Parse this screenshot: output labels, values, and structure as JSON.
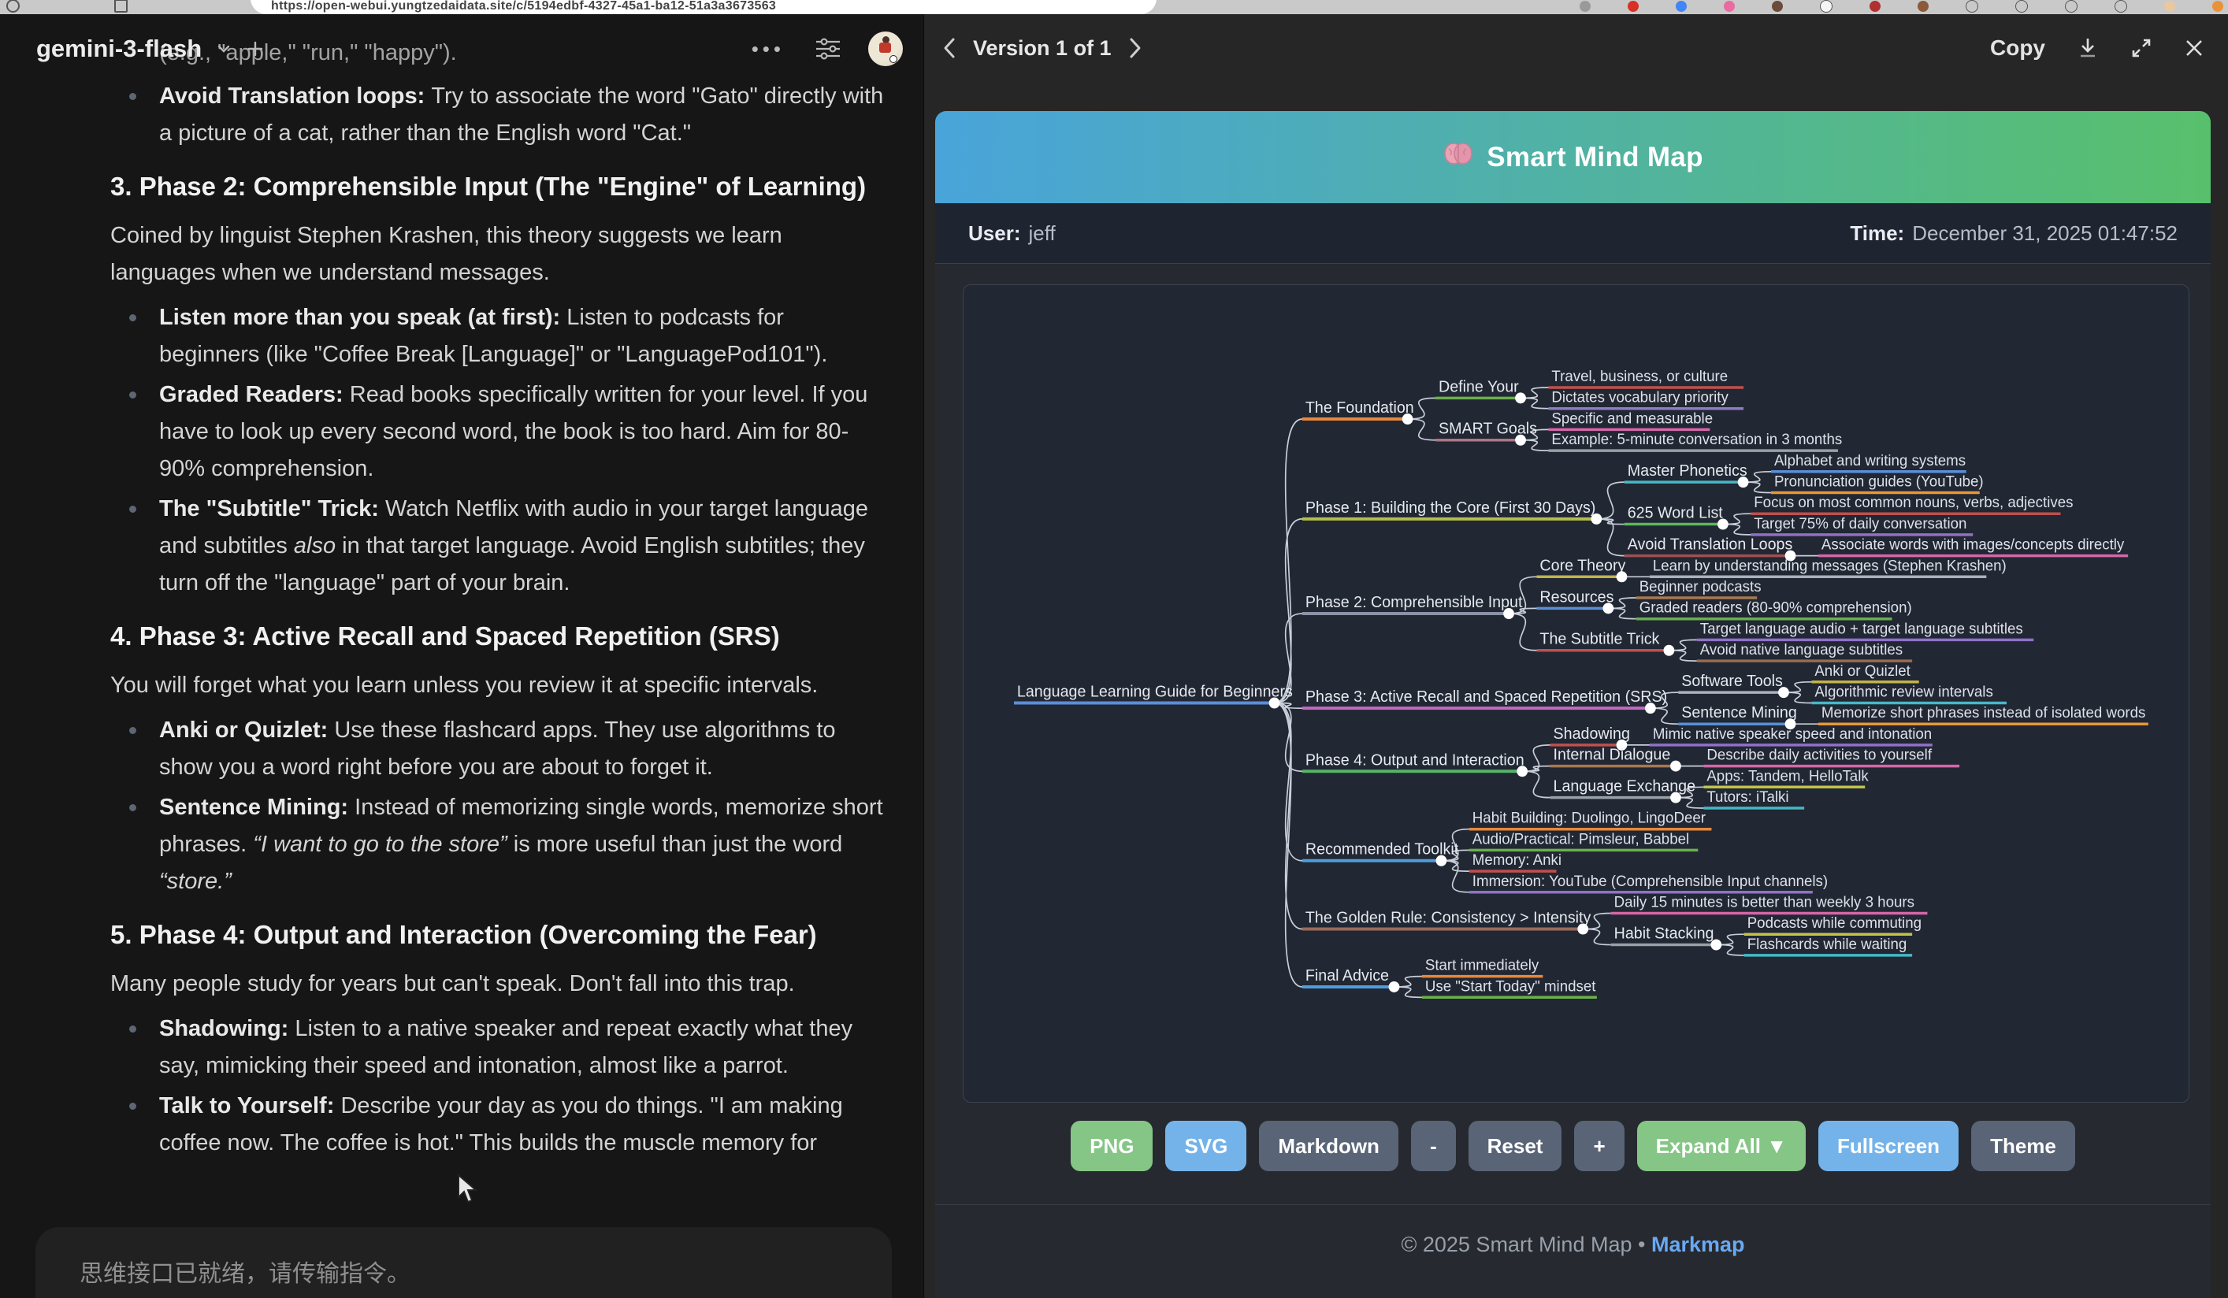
{
  "browser": {
    "url": "https://open-webui.yungtzedaidata.site/c/5194edbf-4327-45a1-ba12-51a3a3673563",
    "extension_icons": [
      {
        "name": "extension-icon-gray",
        "color": "#9a9a9a"
      },
      {
        "name": "extension-icon-red",
        "color": "#d93025"
      },
      {
        "name": "extension-icon-blue",
        "color": "#4285f4"
      },
      {
        "name": "extension-icon-pink",
        "color": "#e86ca0"
      },
      {
        "name": "extension-icon-brown",
        "color": "#6b4b3a"
      },
      {
        "name": "extension-icon-white",
        "color": "#f5f5f5"
      },
      {
        "name": "extension-icon-darkred",
        "color": "#b03030"
      },
      {
        "name": "extension-icon-tan",
        "color": "#8a5a3a"
      },
      {
        "name": "extension-icon-outline-1",
        "color": "#3c3c3c"
      },
      {
        "name": "extension-icon-outline-2",
        "color": "#3c3c3c"
      },
      {
        "name": "extension-icon-outline-3",
        "color": "#3c3c3c"
      },
      {
        "name": "extension-icon-outline-4",
        "color": "#3c3c3c"
      },
      {
        "name": "profile-avatar",
        "color": "#e8c8a0"
      },
      {
        "name": "extension-icon-orange",
        "color": "#e8923a"
      }
    ]
  },
  "chat": {
    "model": "gemini-3-flash",
    "input_placeholder": "思维接口已就绪，请传输指令。",
    "blocks": [
      {
        "type": "frag",
        "runs": [
          {
            "t": "(e.g., \"apple,\" \"run,\" \"happy\")."
          }
        ]
      },
      {
        "type": "bullet",
        "runs": [
          {
            "b": true,
            "t": "Avoid Translation loops: "
          },
          {
            "t": "Try to associate the word \"Gato\" directly with a picture of a cat, rather than the English word \"Cat.\""
          }
        ]
      },
      {
        "type": "h3",
        "runs": [
          {
            "t": "3. Phase 2: Comprehensible Input (The \"Engine\" of Learning)"
          }
        ]
      },
      {
        "type": "p",
        "runs": [
          {
            "t": "Coined by linguist Stephen Krashen, this theory suggests we learn languages when we understand messages."
          }
        ]
      },
      {
        "type": "bullet",
        "runs": [
          {
            "b": true,
            "t": "Listen more than you speak (at first): "
          },
          {
            "t": "Listen to podcasts for beginners (like \"Coffee Break [Language]\" or \"LanguagePod101\")."
          }
        ]
      },
      {
        "type": "bullet",
        "runs": [
          {
            "b": true,
            "t": "Graded Readers: "
          },
          {
            "t": "Read books specifically written for your level. If you have to look up every second word, the book is too hard. Aim for 80-90% comprehension."
          }
        ]
      },
      {
        "type": "bullet",
        "runs": [
          {
            "b": true,
            "t": "The \"Subtitle\" Trick: "
          },
          {
            "t": "Watch Netflix with audio in your target language and subtitles "
          },
          {
            "i": true,
            "t": "also"
          },
          {
            "t": " in that target language. Avoid English subtitles; they turn off the \"language\" part of your brain."
          }
        ]
      },
      {
        "type": "h3",
        "runs": [
          {
            "t": "4. Phase 3: Active Recall and Spaced Repetition (SRS)"
          }
        ]
      },
      {
        "type": "p",
        "runs": [
          {
            "t": "You will forget what you learn unless you review it at specific intervals."
          }
        ]
      },
      {
        "type": "bullet",
        "runs": [
          {
            "b": true,
            "t": "Anki or Quizlet: "
          },
          {
            "t": "Use these flashcard apps. They use algorithms to show you a word right before you are about to forget it."
          }
        ]
      },
      {
        "type": "bullet",
        "runs": [
          {
            "b": true,
            "t": "Sentence Mining: "
          },
          {
            "t": "Instead of memorizing single words, memorize short phrases. "
          },
          {
            "i": true,
            "t": "“I want to go to the store”"
          },
          {
            "t": " is more useful than just the word "
          },
          {
            "i": true,
            "t": "“store.”"
          }
        ]
      },
      {
        "type": "h3",
        "runs": [
          {
            "t": "5. Phase 4: Output and Interaction (Overcoming the Fear)"
          }
        ]
      },
      {
        "type": "p",
        "runs": [
          {
            "t": "Many people study for years but can't speak. Don't fall into this trap."
          }
        ]
      },
      {
        "type": "bullet",
        "runs": [
          {
            "b": true,
            "t": "Shadowing: "
          },
          {
            "t": "Listen to a native speaker and repeat exactly what they say, mimicking their speed and intonation, almost like a parrot."
          }
        ]
      },
      {
        "type": "bullet",
        "runs": [
          {
            "b": true,
            "t": "Talk to Yourself: "
          },
          {
            "t": "Describe your day as you do things. \"I am making coffee now. The coffee is hot.\" This builds the muscle memory for"
          }
        ]
      }
    ]
  },
  "artifact": {
    "version_label": "Version 1 of 1",
    "copy_label": "Copy"
  },
  "mindmap": {
    "title": "Smart Mind Map",
    "user_label": "User:",
    "user_value": "jeff",
    "time_label": "Time:",
    "time_value": "December 31, 2025 01:47:52",
    "footer_text": "© 2025 Smart Mind Map •",
    "footer_link": "Markmap",
    "toolbar": [
      {
        "label": "PNG",
        "style": "green"
      },
      {
        "label": "SVG",
        "style": "blue"
      },
      {
        "label": "Markdown",
        "style": "slate"
      },
      {
        "label": "-",
        "style": "slate"
      },
      {
        "label": "Reset",
        "style": "slate"
      },
      {
        "label": "+",
        "style": "slate"
      },
      {
        "label": "Expand All ▼",
        "style": "green"
      },
      {
        "label": "Fullscreen",
        "style": "blue"
      },
      {
        "label": "Theme",
        "style": "slate"
      }
    ],
    "tree": {
      "label": "Language Learning Guide for Beginners",
      "color": "#5a8fd8",
      "children": [
        {
          "label": "The Foundation",
          "color": "#e8883a",
          "children": [
            {
              "label": "Define Your",
              "color": "#6ab04c",
              "children": [
                {
                  "label": "Travel, business, or culture",
                  "color": "#c0504d"
                },
                {
                  "label": "Dictates vocabulary priority",
                  "color": "#8e7cc3"
                }
              ]
            },
            {
              "label": "SMART Goals",
              "color": "#b07585",
              "children": [
                {
                  "label": "Specific and measurable",
                  "color": "#d567a8"
                },
                {
                  "label": "Example: 5-minute conversation in 3 months",
                  "color": "#9aa0a6"
                }
              ]
            }
          ]
        },
        {
          "label": "Phase 1: Building the Core (First 30 Days)",
          "color": "#b5bd4e",
          "children": [
            {
              "label": "Master Phonetics",
              "color": "#45b8c8",
              "children": [
                {
                  "label": "Alphabet and writing systems",
                  "color": "#5a8fd8"
                },
                {
                  "label": "Pronunciation guides (YouTube)",
                  "color": "#e8973a"
                }
              ]
            },
            {
              "label": "625 Word List",
              "color": "#5cb85c",
              "children": [
                {
                  "label": "Focus on most common nouns, verbs, adjectives",
                  "color": "#c0504d"
                },
                {
                  "label": "Target 75% of daily conversation",
                  "color": "#9270c8"
                }
              ]
            },
            {
              "label": "Avoid Translation Loops",
              "color": "#a05050",
              "children": [
                {
                  "label": "Associate words with images/concepts directly",
                  "color": "#d567a8"
                }
              ]
            }
          ]
        },
        {
          "label": "Phase 2: Comprehensible Input",
          "color": "#8a93a6",
          "children": [
            {
              "label": "Core Theory",
              "color": "#c2b44a",
              "children": [
                {
                  "label": "Learn by understanding messages (Stephen Krashen)",
                  "color": "#aab2bd"
                }
              ]
            },
            {
              "label": "Resources",
              "color": "#5a8fd8",
              "children": [
                {
                  "label": "Beginner podcasts",
                  "color": "#a87850"
                },
                {
                  "label": "Graded readers (80-90% comprehension)",
                  "color": "#6ab04c"
                }
              ]
            },
            {
              "label": "The Subtitle Trick",
              "color": "#c0504d",
              "children": [
                {
                  "label": "Target language audio + target language subtitles",
                  "color": "#9270c8"
                },
                {
                  "label": "Avoid native language subtitles",
                  "color": "#9a6a50"
                }
              ]
            }
          ]
        },
        {
          "label": "Phase 3: Active Recall and Spaced Repetition (SRS)",
          "color": "#c06ac0",
          "children": [
            {
              "label": "Software Tools",
              "color": "#aab2bd",
              "children": [
                {
                  "label": "Anki or Quizlet",
                  "color": "#c2b44a"
                },
                {
                  "label": "Algorithmic review intervals",
                  "color": "#45b8c8"
                }
              ]
            },
            {
              "label": "Sentence Mining",
              "color": "#5a8fd8",
              "children": [
                {
                  "label": "Memorize short phrases instead of isolated words",
                  "color": "#e8973a"
                }
              ]
            }
          ]
        },
        {
          "label": "Phase 4: Output and Interaction",
          "color": "#58b368",
          "children": [
            {
              "label": "Shadowing",
              "color": "#c0504d",
              "children": [
                {
                  "label": "Mimic native speaker speed and intonation",
                  "color": "#9270c8"
                }
              ]
            },
            {
              "label": "Internal Dialogue",
              "color": "#a87850",
              "children": [
                {
                  "label": "Describe daily activities to yourself",
                  "color": "#d567a8"
                }
              ]
            },
            {
              "label": "Language Exchange",
              "color": "#9aa0a6",
              "children": [
                {
                  "label": "Apps: Tandem, HelloTalk",
                  "color": "#c2c44a"
                },
                {
                  "label": "Tutors: iTalki",
                  "color": "#45b8c8"
                }
              ]
            }
          ]
        },
        {
          "label": "Recommended Toolkit",
          "color": "#4e9ddb",
          "children": [
            {
              "label": "Habit Building: Duolingo, LingoDeer",
              "color": "#e8883a"
            },
            {
              "label": "Audio/Practical: Pimsleur, Babbel",
              "color": "#6ab04c"
            },
            {
              "label": "Memory: Anki",
              "color": "#c0504d"
            },
            {
              "label": "Immersion: YouTube (Comprehensible Input channels)",
              "color": "#9270c8"
            }
          ]
        },
        {
          "label": "The Golden Rule: Consistency > Intensity",
          "color": "#9a6a5a",
          "children": [
            {
              "label": "Daily 15 minutes is better than weekly 3 hours",
              "color": "#d567a8"
            },
            {
              "label": "Habit Stacking",
              "color": "#9aa0a6",
              "children": [
                {
                  "label": "Podcasts while commuting",
                  "color": "#c2c44a"
                },
                {
                  "label": "Flashcards while waiting",
                  "color": "#45b8c8"
                }
              ]
            }
          ]
        },
        {
          "label": "Final Advice",
          "color": "#4e9ddb",
          "children": [
            {
              "label": "Start immediately",
              "color": "#e8883a"
            },
            {
              "label": "Use \"Start Today\" mindset",
              "color": "#6ab04c"
            }
          ]
        }
      ]
    }
  }
}
